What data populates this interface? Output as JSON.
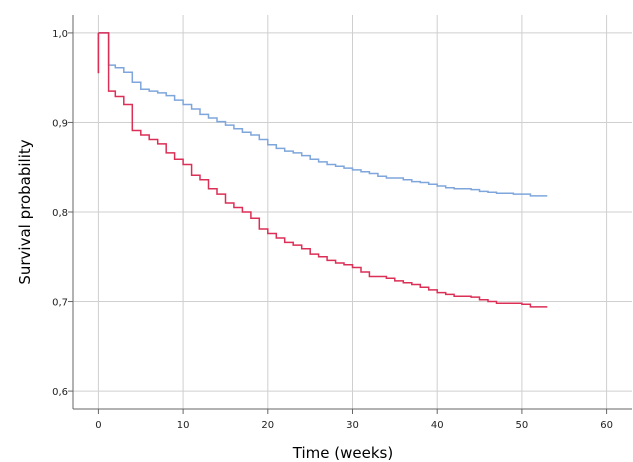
{
  "chart_data": {
    "type": "line",
    "step": true,
    "xlabel": "Time (weeks)",
    "ylabel": "Survival probability",
    "xlim": [
      -3,
      63
    ],
    "ylim": [
      0.58,
      1.02
    ],
    "xticks": [
      0,
      10,
      20,
      30,
      40,
      50,
      60
    ],
    "yticks": [
      0.6,
      0.7,
      0.8,
      0.9,
      1.0
    ],
    "xtick_labels": [
      "0",
      "10",
      "20",
      "30",
      "40",
      "50",
      "60"
    ],
    "ytick_labels": [
      "0,6",
      "0,7",
      "0,8",
      "0,9",
      "1,0"
    ],
    "grid": true,
    "series": [
      {
        "color": "#7ea6dc",
        "x": [
          0,
          1,
          1.2,
          2,
          3,
          4,
          5,
          6,
          7,
          8,
          9,
          10,
          11,
          12,
          13,
          14,
          15,
          16,
          17,
          18,
          19,
          20,
          21,
          22,
          23,
          24,
          25,
          26,
          27,
          28,
          29,
          30,
          31,
          32,
          33,
          34,
          36,
          37,
          38,
          39,
          40,
          41,
          42,
          44,
          45,
          46,
          47,
          48,
          49,
          50,
          51,
          53
        ],
        "y": [
          1.0,
          1.0,
          0.964,
          0.961,
          0.956,
          0.945,
          0.937,
          0.935,
          0.933,
          0.93,
          0.925,
          0.92,
          0.915,
          0.909,
          0.905,
          0.901,
          0.897,
          0.893,
          0.889,
          0.886,
          0.881,
          0.875,
          0.871,
          0.868,
          0.866,
          0.863,
          0.859,
          0.856,
          0.853,
          0.851,
          0.849,
          0.847,
          0.845,
          0.843,
          0.84,
          0.838,
          0.836,
          0.834,
          0.833,
          0.831,
          0.829,
          0.827,
          0.826,
          0.825,
          0.823,
          0.822,
          0.821,
          0.821,
          0.82,
          0.82,
          0.818,
          0.818
        ]
      },
      {
        "color": "#dc2f56",
        "x": [
          0,
          1,
          1.2,
          2,
          3,
          4,
          5,
          6,
          7,
          8,
          9,
          10,
          11,
          12,
          13,
          14,
          15,
          16,
          17,
          18,
          19,
          20,
          21,
          22,
          23,
          24,
          25,
          26,
          27,
          28,
          29,
          30,
          31,
          32,
          34,
          35,
          36,
          37,
          38,
          39,
          40,
          41,
          42,
          44,
          45,
          46,
          47,
          48,
          50,
          51,
          53
        ],
        "y": [
          1.0,
          1.0,
          0.935,
          0.929,
          0.92,
          0.891,
          0.886,
          0.881,
          0.876,
          0.866,
          0.859,
          0.853,
          0.841,
          0.836,
          0.826,
          0.82,
          0.81,
          0.805,
          0.8,
          0.793,
          0.781,
          0.776,
          0.771,
          0.766,
          0.763,
          0.759,
          0.753,
          0.75,
          0.746,
          0.743,
          0.741,
          0.738,
          0.733,
          0.728,
          0.726,
          0.723,
          0.721,
          0.719,
          0.716,
          0.713,
          0.71,
          0.708,
          0.706,
          0.705,
          0.702,
          0.7,
          0.698,
          0.698,
          0.697,
          0.694,
          0.694
        ]
      }
    ]
  }
}
